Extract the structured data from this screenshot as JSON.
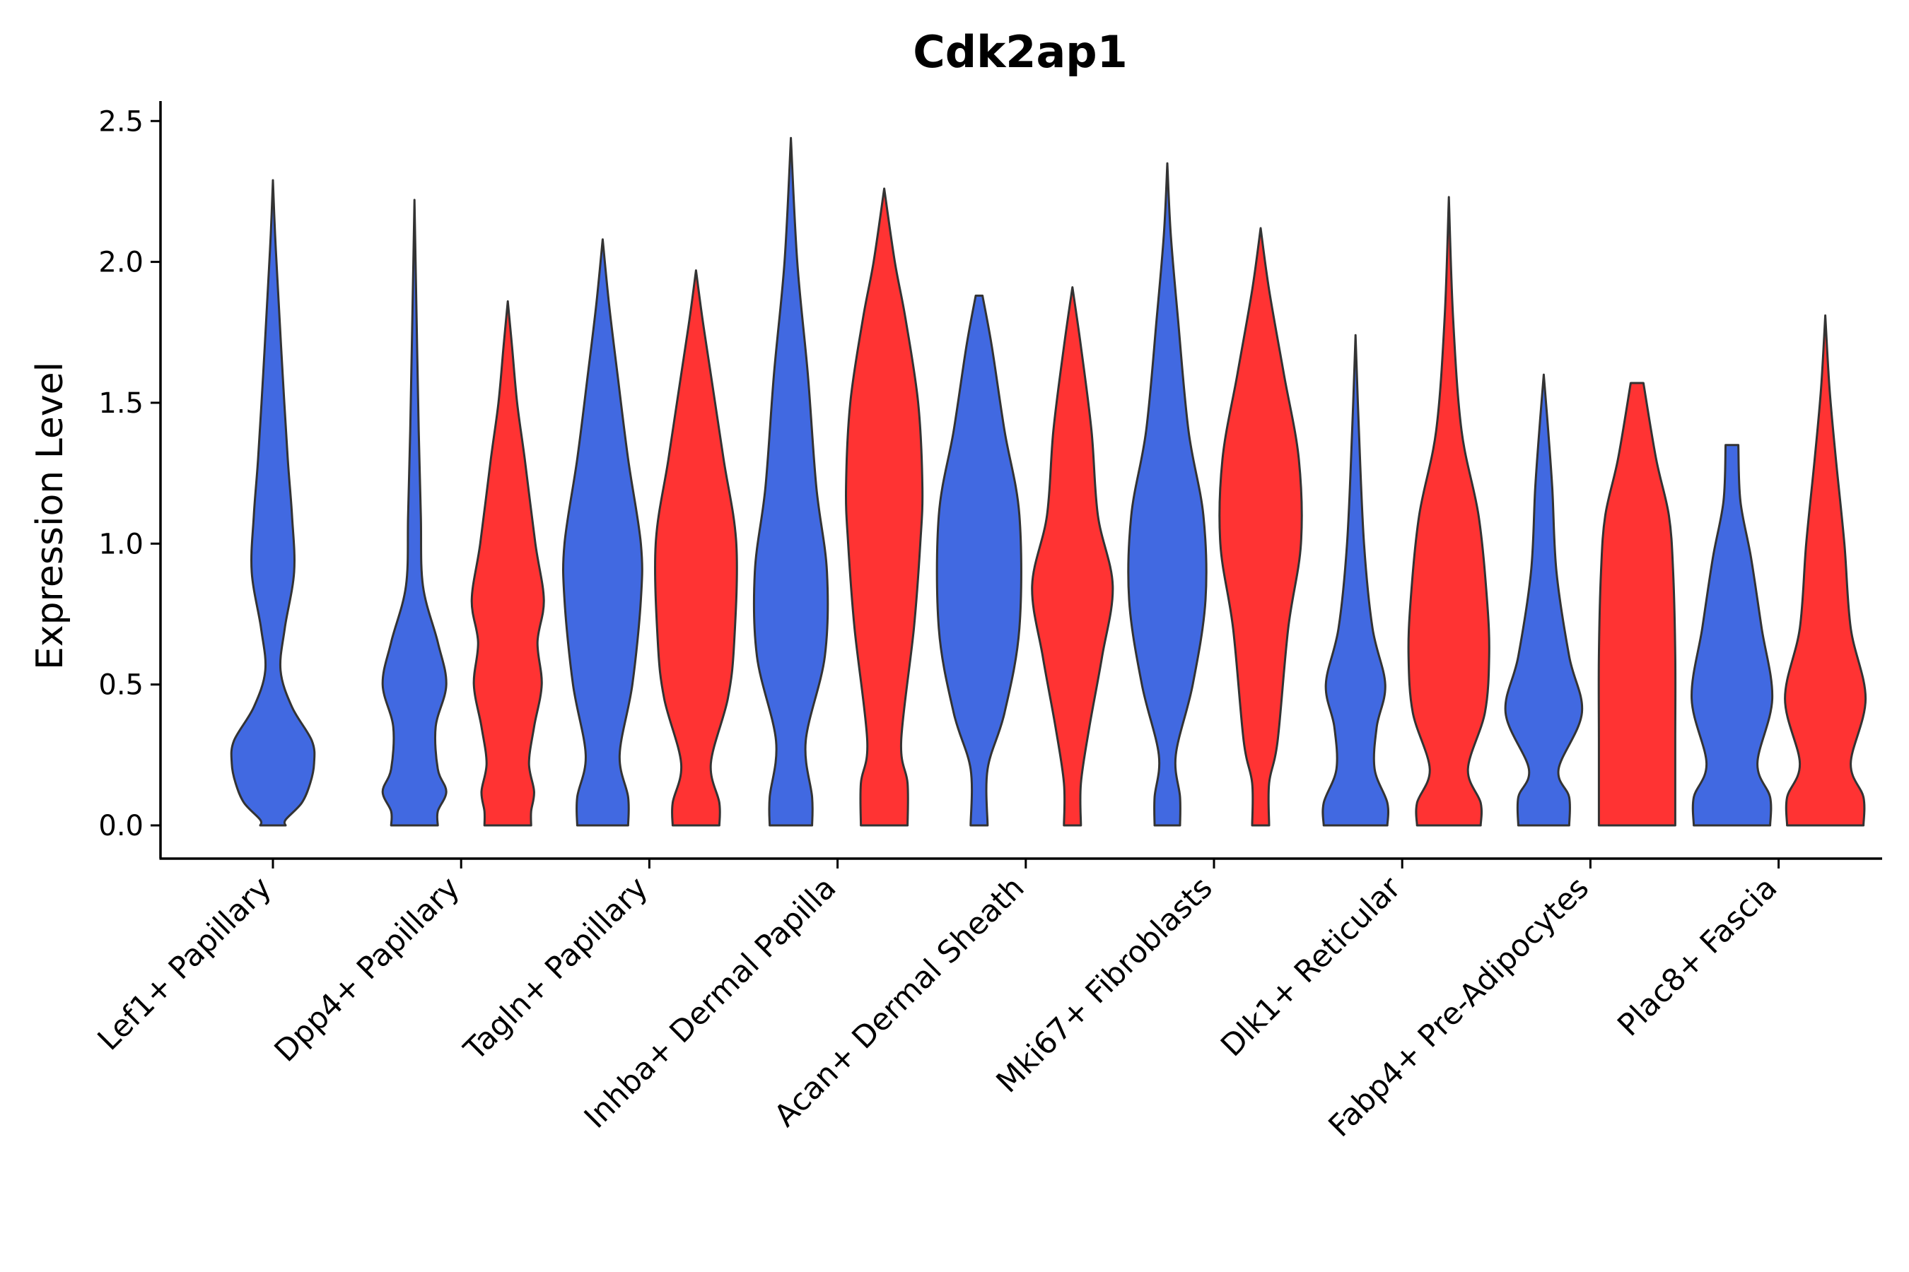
{
  "chart_data": {
    "type": "violin",
    "title": "Cdk2ap1",
    "xlabel": "",
    "ylabel": "Expression Level",
    "ylim": [
      -0.12,
      2.6
    ],
    "yticks": [
      0.0,
      0.5,
      1.0,
      1.5,
      2.0,
      2.5
    ],
    "ytick_labels": [
      "0.0",
      "0.5",
      "1.0",
      "1.5",
      "2.0",
      "2.5"
    ],
    "series_colors": {
      "blue": "#4169E1",
      "red": "#FF3333"
    },
    "categories": [
      {
        "name": "Lef1+ Papillary",
        "violins": [
          {
            "series": "blue",
            "max": 2.29,
            "profile": [
              [
                0,
                0.0
              ],
              [
                0.02,
                0.3
              ],
              [
                0.08,
                0.68
              ],
              [
                0.15,
                0.88
              ],
              [
                0.22,
                0.97
              ],
              [
                0.3,
                0.92
              ],
              [
                0.42,
                0.45
              ],
              [
                0.55,
                0.18
              ],
              [
                0.7,
                0.28
              ],
              [
                0.9,
                0.5
              ],
              [
                1.1,
                0.45
              ],
              [
                1.3,
                0.35
              ],
              [
                1.6,
                0.23
              ],
              [
                1.9,
                0.12
              ],
              [
                2.1,
                0.05
              ],
              [
                2.29,
                0.0
              ]
            ]
          }
        ]
      },
      {
        "name": "Dpp4+ Papillary",
        "violins": [
          {
            "series": "blue",
            "max": 2.22,
            "profile": [
              [
                0,
                0.0
              ],
              [
                0.05,
                0.55
              ],
              [
                0.12,
                0.75
              ],
              [
                0.2,
                0.55
              ],
              [
                0.35,
                0.5
              ],
              [
                0.5,
                0.75
              ],
              [
                0.65,
                0.55
              ],
              [
                0.85,
                0.2
              ],
              [
                1.1,
                0.15
              ],
              [
                1.4,
                0.1
              ],
              [
                1.8,
                0.05
              ],
              [
                2.22,
                0.0
              ]
            ]
          },
          {
            "series": "red",
            "max": 1.86,
            "profile": [
              [
                0,
                0.0
              ],
              [
                0.05,
                0.55
              ],
              [
                0.12,
                0.62
              ],
              [
                0.22,
                0.5
              ],
              [
                0.35,
                0.62
              ],
              [
                0.5,
                0.8
              ],
              [
                0.65,
                0.7
              ],
              [
                0.8,
                0.85
              ],
              [
                1.0,
                0.65
              ],
              [
                1.3,
                0.4
              ],
              [
                1.5,
                0.22
              ],
              [
                1.7,
                0.1
              ],
              [
                1.86,
                0.0
              ]
            ]
          }
        ]
      },
      {
        "name": "Tagln+ Papillary",
        "violins": [
          {
            "series": "blue",
            "max": 2.08,
            "profile": [
              [
                0,
                0.0
              ],
              [
                0.1,
                0.6
              ],
              [
                0.25,
                0.4
              ],
              [
                0.5,
                0.7
              ],
              [
                0.8,
                0.9
              ],
              [
                1.0,
                0.9
              ],
              [
                1.3,
                0.6
              ],
              [
                1.6,
                0.35
              ],
              [
                1.85,
                0.15
              ],
              [
                2.08,
                0.0
              ]
            ]
          },
          {
            "series": "red",
            "max": 1.97,
            "profile": [
              [
                0,
                0.0
              ],
              [
                0.08,
                0.55
              ],
              [
                0.22,
                0.35
              ],
              [
                0.45,
                0.75
              ],
              [
                0.65,
                0.9
              ],
              [
                1.0,
                0.95
              ],
              [
                1.3,
                0.65
              ],
              [
                1.6,
                0.35
              ],
              [
                1.8,
                0.15
              ],
              [
                1.97,
                0.0
              ]
            ]
          }
        ]
      },
      {
        "name": "Inhba+ Dermal Papilla",
        "violins": [
          {
            "series": "blue",
            "max": 2.44,
            "profile": [
              [
                0,
                0.0
              ],
              [
                0.1,
                0.5
              ],
              [
                0.3,
                0.35
              ],
              [
                0.6,
                0.8
              ],
              [
                0.9,
                0.85
              ],
              [
                1.2,
                0.6
              ],
              [
                1.6,
                0.4
              ],
              [
                2.0,
                0.15
              ],
              [
                2.44,
                0.0
              ]
            ]
          },
          {
            "series": "red",
            "max": 2.26,
            "profile": [
              [
                0,
                0.0
              ],
              [
                0.15,
                0.55
              ],
              [
                0.3,
                0.4
              ],
              [
                0.7,
                0.7
              ],
              [
                1.0,
                0.85
              ],
              [
                1.2,
                0.9
              ],
              [
                1.5,
                0.8
              ],
              [
                1.8,
                0.5
              ],
              [
                2.0,
                0.25
              ],
              [
                2.26,
                0.0
              ]
            ]
          }
        ]
      },
      {
        "name": "Acan+ Dermal Sheath",
        "violins": [
          {
            "series": "blue",
            "max": 1.88,
            "profile": [
              [
                0,
                0.0
              ],
              [
                0.2,
                0.2
              ],
              [
                0.4,
                0.6
              ],
              [
                0.7,
                0.95
              ],
              [
                1.1,
                0.95
              ],
              [
                1.4,
                0.6
              ],
              [
                1.7,
                0.3
              ],
              [
                1.88,
                0.08
              ]
            ]
          },
          {
            "series": "red",
            "max": 1.91,
            "profile": [
              [
                0,
                0.0
              ],
              [
                0.15,
                0.2
              ],
              [
                0.35,
                0.4
              ],
              [
                0.6,
                0.7
              ],
              [
                0.85,
                0.95
              ],
              [
                1.1,
                0.6
              ],
              [
                1.4,
                0.45
              ],
              [
                1.7,
                0.2
              ],
              [
                1.91,
                0.0
              ]
            ]
          }
        ]
      },
      {
        "name": "Mki67+ Fibroblasts",
        "violins": [
          {
            "series": "blue",
            "max": 2.35,
            "profile": [
              [
                0,
                0.0
              ],
              [
                0.1,
                0.3
              ],
              [
                0.25,
                0.2
              ],
              [
                0.5,
                0.6
              ],
              [
                0.8,
                0.9
              ],
              [
                1.1,
                0.85
              ],
              [
                1.4,
                0.5
              ],
              [
                1.8,
                0.25
              ],
              [
                2.1,
                0.08
              ],
              [
                2.35,
                0.0
              ]
            ]
          },
          {
            "series": "red",
            "max": 2.12,
            "profile": [
              [
                0,
                0.0
              ],
              [
                0.15,
                0.2
              ],
              [
                0.3,
                0.4
              ],
              [
                0.7,
                0.65
              ],
              [
                1.0,
                0.95
              ],
              [
                1.3,
                0.9
              ],
              [
                1.6,
                0.55
              ],
              [
                1.9,
                0.2
              ],
              [
                2.12,
                0.0
              ]
            ]
          }
        ]
      },
      {
        "name": "Dlk1+ Reticular",
        "violins": [
          {
            "series": "blue",
            "max": 1.74,
            "profile": [
              [
                0,
                0.0
              ],
              [
                0.08,
                0.75
              ],
              [
                0.2,
                0.45
              ],
              [
                0.35,
                0.5
              ],
              [
                0.5,
                0.7
              ],
              [
                0.7,
                0.4
              ],
              [
                1.0,
                0.2
              ],
              [
                1.4,
                0.08
              ],
              [
                1.74,
                0.0
              ]
            ]
          },
          {
            "series": "red",
            "max": 2.23,
            "profile": [
              [
                0,
                0.0
              ],
              [
                0.08,
                0.75
              ],
              [
                0.2,
                0.45
              ],
              [
                0.4,
                0.85
              ],
              [
                0.6,
                0.95
              ],
              [
                0.8,
                0.9
              ],
              [
                1.1,
                0.7
              ],
              [
                1.4,
                0.3
              ],
              [
                1.8,
                0.1
              ],
              [
                2.23,
                0.0
              ]
            ]
          }
        ]
      },
      {
        "name": "Fabp4+ Pre-Adipocytes",
        "violins": [
          {
            "series": "blue",
            "max": 1.6,
            "profile": [
              [
                0,
                0.0
              ],
              [
                0.1,
                0.6
              ],
              [
                0.2,
                0.35
              ],
              [
                0.4,
                0.9
              ],
              [
                0.6,
                0.6
              ],
              [
                0.9,
                0.3
              ],
              [
                1.2,
                0.2
              ],
              [
                1.45,
                0.08
              ],
              [
                1.6,
                0.0
              ]
            ]
          },
          {
            "series": "red",
            "max": 1.57,
            "profile": [
              [
                0,
                0.0
              ],
              [
                0.3,
                0.9
              ],
              [
                0.6,
                0.9
              ],
              [
                0.9,
                0.85
              ],
              [
                1.1,
                0.75
              ],
              [
                1.3,
                0.45
              ],
              [
                1.57,
                0.15
              ]
            ]
          }
        ]
      },
      {
        "name": "Plac8+ Fascia",
        "violins": [
          {
            "series": "blue",
            "max": 1.35,
            "profile": [
              [
                0,
                0.0
              ],
              [
                0.1,
                0.9
              ],
              [
                0.22,
                0.6
              ],
              [
                0.45,
                0.95
              ],
              [
                0.7,
                0.7
              ],
              [
                0.95,
                0.45
              ],
              [
                1.15,
                0.2
              ],
              [
                1.35,
                0.15
              ]
            ]
          },
          {
            "series": "red",
            "max": 1.81,
            "profile": [
              [
                0,
                0.0
              ],
              [
                0.1,
                0.9
              ],
              [
                0.22,
                0.6
              ],
              [
                0.45,
                0.95
              ],
              [
                0.7,
                0.6
              ],
              [
                1.0,
                0.45
              ],
              [
                1.3,
                0.25
              ],
              [
                1.55,
                0.1
              ],
              [
                1.81,
                0.0
              ]
            ]
          }
        ]
      }
    ]
  }
}
